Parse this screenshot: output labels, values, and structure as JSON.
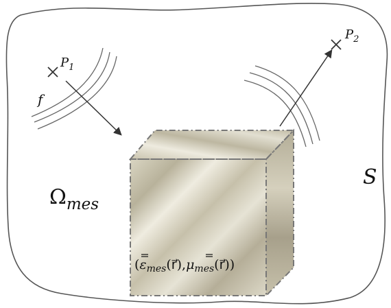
{
  "labels": {
    "p1_main": "P",
    "p1_sub": "1",
    "p2_main": "P",
    "p2_sub": "2",
    "f": "f",
    "s": "S",
    "omega_main": "Ω",
    "omega_sub": "mes",
    "tensor_open": "(",
    "eps_symbol": "ε",
    "eps_sub": "mes",
    "eps_arg": "(r⃗),",
    "mu_symbol": "μ",
    "mu_sub": "mes",
    "mu_arg": "(r⃗))"
  },
  "colors": {
    "outline": "#555555",
    "arrow": "#333333",
    "wave": "#666666",
    "cube_edge": "#777777",
    "metal_light": "#e9e6d9",
    "metal_mid": "#c9c3ad",
    "metal_dark": "#a9a28d"
  }
}
